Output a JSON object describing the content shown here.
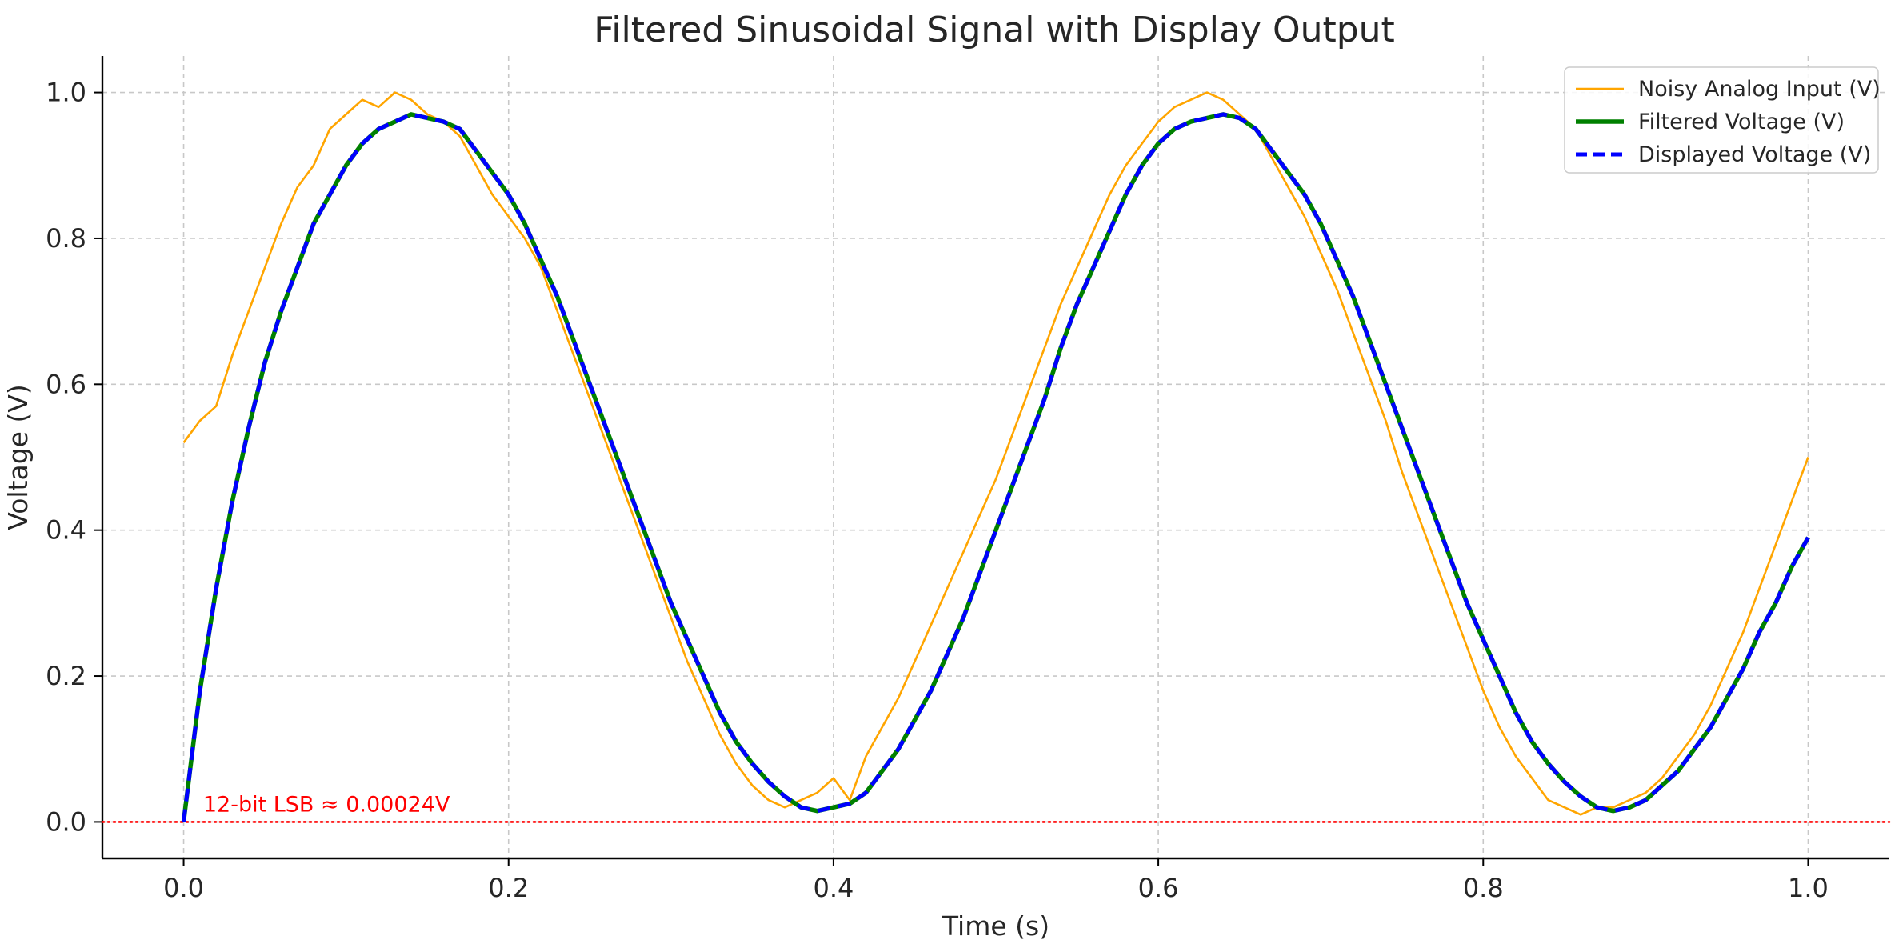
{
  "chart_data": {
    "type": "line",
    "title": "Filtered Sinusoidal Signal with Display Output",
    "xlabel": "Time (s)",
    "ylabel": "Voltage (V)",
    "xlim": [
      -0.05,
      1.05
    ],
    "ylim": [
      -0.05,
      1.05
    ],
    "x_ticks": [
      0.0,
      0.2,
      0.4,
      0.6,
      0.8,
      1.0
    ],
    "x_tick_labels": [
      "0.0",
      "0.2",
      "0.4",
      "0.6",
      "0.8",
      "1.0"
    ],
    "y_ticks": [
      0.0,
      0.2,
      0.4,
      0.6,
      0.8,
      1.0
    ],
    "y_tick_labels": [
      "0.0",
      "0.2",
      "0.4",
      "0.6",
      "0.8",
      "1.0"
    ],
    "grid": true,
    "legend_position": "top-right",
    "series": [
      {
        "name": "Noisy Analog Input (V)",
        "color": "#FFA500",
        "style": "solid",
        "x": [
          0.0,
          0.01,
          0.02,
          0.03,
          0.04,
          0.05,
          0.06,
          0.07,
          0.08,
          0.09,
          0.1,
          0.11,
          0.12,
          0.13,
          0.14,
          0.15,
          0.16,
          0.17,
          0.18,
          0.19,
          0.2,
          0.21,
          0.22,
          0.23,
          0.24,
          0.25,
          0.26,
          0.27,
          0.28,
          0.29,
          0.3,
          0.31,
          0.32,
          0.33,
          0.34,
          0.35,
          0.36,
          0.37,
          0.38,
          0.39,
          0.4,
          0.41,
          0.42,
          0.43,
          0.44,
          0.45,
          0.46,
          0.47,
          0.48,
          0.49,
          0.5,
          0.51,
          0.52,
          0.53,
          0.54,
          0.55,
          0.56,
          0.57,
          0.58,
          0.59,
          0.6,
          0.61,
          0.62,
          0.63,
          0.64,
          0.65,
          0.66,
          0.67,
          0.68,
          0.69,
          0.7,
          0.71,
          0.72,
          0.73,
          0.74,
          0.75,
          0.76,
          0.77,
          0.78,
          0.79,
          0.8,
          0.81,
          0.82,
          0.83,
          0.84,
          0.85,
          0.86,
          0.87,
          0.88,
          0.89,
          0.9,
          0.91,
          0.92,
          0.93,
          0.94,
          0.95,
          0.96,
          0.97,
          0.98,
          0.99,
          1.0
        ],
        "y": [
          0.52,
          0.55,
          0.57,
          0.64,
          0.7,
          0.76,
          0.82,
          0.87,
          0.9,
          0.95,
          0.97,
          0.99,
          0.98,
          1.0,
          0.99,
          0.97,
          0.96,
          0.94,
          0.9,
          0.86,
          0.83,
          0.8,
          0.76,
          0.7,
          0.64,
          0.58,
          0.52,
          0.46,
          0.4,
          0.34,
          0.28,
          0.22,
          0.17,
          0.12,
          0.08,
          0.05,
          0.03,
          0.02,
          0.03,
          0.04,
          0.06,
          0.03,
          0.09,
          0.13,
          0.17,
          0.22,
          0.27,
          0.32,
          0.37,
          0.42,
          0.47,
          0.53,
          0.59,
          0.65,
          0.71,
          0.76,
          0.81,
          0.86,
          0.9,
          0.93,
          0.96,
          0.98,
          0.99,
          1.0,
          0.99,
          0.97,
          0.95,
          0.91,
          0.87,
          0.83,
          0.78,
          0.73,
          0.67,
          0.61,
          0.55,
          0.48,
          0.42,
          0.36,
          0.3,
          0.24,
          0.18,
          0.13,
          0.09,
          0.06,
          0.03,
          0.02,
          0.01,
          0.02,
          0.02,
          0.03,
          0.04,
          0.06,
          0.09,
          0.12,
          0.16,
          0.21,
          0.26,
          0.32,
          0.38,
          0.44,
          0.5
        ]
      },
      {
        "name": "Filtered Voltage (V)",
        "color": "#008000",
        "style": "solid",
        "x": [
          0.0,
          0.01,
          0.02,
          0.03,
          0.04,
          0.05,
          0.06,
          0.07,
          0.08,
          0.09,
          0.1,
          0.11,
          0.12,
          0.13,
          0.14,
          0.15,
          0.16,
          0.17,
          0.18,
          0.19,
          0.2,
          0.21,
          0.22,
          0.23,
          0.24,
          0.25,
          0.26,
          0.27,
          0.28,
          0.29,
          0.3,
          0.31,
          0.32,
          0.33,
          0.34,
          0.35,
          0.36,
          0.37,
          0.38,
          0.39,
          0.4,
          0.41,
          0.42,
          0.43,
          0.44,
          0.45,
          0.46,
          0.47,
          0.48,
          0.49,
          0.5,
          0.51,
          0.52,
          0.53,
          0.54,
          0.55,
          0.56,
          0.57,
          0.58,
          0.59,
          0.6,
          0.61,
          0.62,
          0.63,
          0.64,
          0.65,
          0.66,
          0.67,
          0.68,
          0.69,
          0.7,
          0.71,
          0.72,
          0.73,
          0.74,
          0.75,
          0.76,
          0.77,
          0.78,
          0.79,
          0.8,
          0.81,
          0.82,
          0.83,
          0.84,
          0.85,
          0.86,
          0.87,
          0.88,
          0.89,
          0.9,
          0.91,
          0.92,
          0.93,
          0.94,
          0.95,
          0.96,
          0.97,
          0.98,
          0.99,
          1.0
        ],
        "y": [
          0.0,
          0.18,
          0.32,
          0.44,
          0.54,
          0.63,
          0.7,
          0.76,
          0.82,
          0.86,
          0.9,
          0.93,
          0.95,
          0.96,
          0.97,
          0.965,
          0.96,
          0.95,
          0.92,
          0.89,
          0.86,
          0.82,
          0.77,
          0.72,
          0.66,
          0.6,
          0.54,
          0.48,
          0.42,
          0.36,
          0.3,
          0.25,
          0.2,
          0.15,
          0.11,
          0.08,
          0.055,
          0.035,
          0.02,
          0.015,
          0.02,
          0.025,
          0.04,
          0.07,
          0.1,
          0.14,
          0.18,
          0.23,
          0.28,
          0.34,
          0.4,
          0.46,
          0.52,
          0.58,
          0.65,
          0.71,
          0.76,
          0.81,
          0.86,
          0.9,
          0.93,
          0.95,
          0.96,
          0.965,
          0.97,
          0.965,
          0.95,
          0.92,
          0.89,
          0.86,
          0.82,
          0.77,
          0.72,
          0.66,
          0.6,
          0.54,
          0.48,
          0.42,
          0.36,
          0.3,
          0.25,
          0.2,
          0.15,
          0.11,
          0.08,
          0.055,
          0.035,
          0.02,
          0.015,
          0.02,
          0.03,
          0.05,
          0.07,
          0.1,
          0.13,
          0.17,
          0.21,
          0.26,
          0.3,
          0.35,
          0.39
        ]
      },
      {
        "name": "Displayed Voltage (V)",
        "color": "#0000FF",
        "style": "dashed",
        "x": [
          0.0,
          0.01,
          0.02,
          0.03,
          0.04,
          0.05,
          0.06,
          0.07,
          0.08,
          0.09,
          0.1,
          0.11,
          0.12,
          0.13,
          0.14,
          0.15,
          0.16,
          0.17,
          0.18,
          0.19,
          0.2,
          0.21,
          0.22,
          0.23,
          0.24,
          0.25,
          0.26,
          0.27,
          0.28,
          0.29,
          0.3,
          0.31,
          0.32,
          0.33,
          0.34,
          0.35,
          0.36,
          0.37,
          0.38,
          0.39,
          0.4,
          0.41,
          0.42,
          0.43,
          0.44,
          0.45,
          0.46,
          0.47,
          0.48,
          0.49,
          0.5,
          0.51,
          0.52,
          0.53,
          0.54,
          0.55,
          0.56,
          0.57,
          0.58,
          0.59,
          0.6,
          0.61,
          0.62,
          0.63,
          0.64,
          0.65,
          0.66,
          0.67,
          0.68,
          0.69,
          0.7,
          0.71,
          0.72,
          0.73,
          0.74,
          0.75,
          0.76,
          0.77,
          0.78,
          0.79,
          0.8,
          0.81,
          0.82,
          0.83,
          0.84,
          0.85,
          0.86,
          0.87,
          0.88,
          0.89,
          0.9,
          0.91,
          0.92,
          0.93,
          0.94,
          0.95,
          0.96,
          0.97,
          0.98,
          0.99,
          1.0
        ],
        "y": [
          0.0,
          0.18,
          0.32,
          0.44,
          0.54,
          0.63,
          0.7,
          0.76,
          0.82,
          0.86,
          0.9,
          0.93,
          0.95,
          0.96,
          0.97,
          0.965,
          0.96,
          0.95,
          0.92,
          0.89,
          0.86,
          0.82,
          0.77,
          0.72,
          0.66,
          0.6,
          0.54,
          0.48,
          0.42,
          0.36,
          0.3,
          0.25,
          0.2,
          0.15,
          0.11,
          0.08,
          0.055,
          0.035,
          0.02,
          0.015,
          0.02,
          0.025,
          0.04,
          0.07,
          0.1,
          0.14,
          0.18,
          0.23,
          0.28,
          0.34,
          0.4,
          0.46,
          0.52,
          0.58,
          0.65,
          0.71,
          0.76,
          0.81,
          0.86,
          0.9,
          0.93,
          0.95,
          0.96,
          0.965,
          0.97,
          0.965,
          0.95,
          0.92,
          0.89,
          0.86,
          0.82,
          0.77,
          0.72,
          0.66,
          0.6,
          0.54,
          0.48,
          0.42,
          0.36,
          0.3,
          0.25,
          0.2,
          0.15,
          0.11,
          0.08,
          0.055,
          0.035,
          0.02,
          0.015,
          0.02,
          0.03,
          0.05,
          0.07,
          0.1,
          0.13,
          0.17,
          0.21,
          0.26,
          0.3,
          0.35,
          0.39
        ]
      }
    ],
    "reference_line": {
      "y": 0.0,
      "color": "#FF0000",
      "style": "dotted"
    },
    "annotation": {
      "text": "12-bit LSB ≈ 0.00024V",
      "x": 0.01,
      "y": 0.01,
      "color": "#FF0000"
    }
  }
}
